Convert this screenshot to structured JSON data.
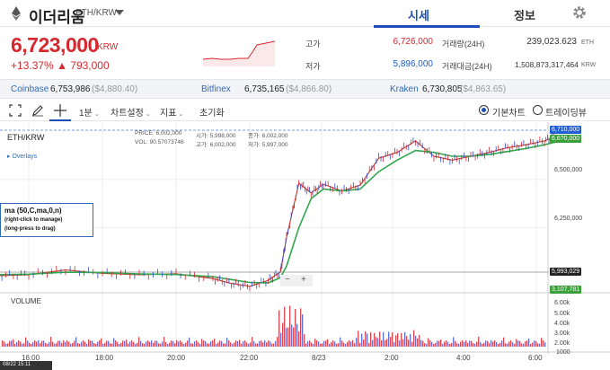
{
  "header": {
    "coin_name": "이더리움",
    "pair": "ETH/KRW",
    "tabs": [
      {
        "label": "시세"
      },
      {
        "label": "정보"
      }
    ]
  },
  "price": {
    "current": "6,723,000",
    "unit": "KRW",
    "change_pct": "+13.37%",
    "change_amt": "▲ 793,000",
    "high_label": "고가",
    "high_value": "6,726,000",
    "low_label": "저가",
    "low_value": "5,896,000",
    "volume_label": "거래량(24H)",
    "volume_value": "239,023.623",
    "volume_unit": "ETH",
    "amount_label": "거래대금(24H)",
    "amount_value": "1,508,873,317,464",
    "amount_unit": "KRW"
  },
  "exchanges": [
    {
      "name": "Coinbase",
      "value": "6,753,986",
      "usd": "($4,880.40)"
    },
    {
      "name": "Bitfinex",
      "value": "6,735,165",
      "usd": "($4,866.80)"
    },
    {
      "name": "Kraken",
      "value": "6,730,805",
      "usd": "($4,863.65)"
    }
  ],
  "toolbar": {
    "interval": "1분",
    "chart_settings": "차트설정",
    "indicators": "지표",
    "reset": "초기화",
    "basic_chart": "기본차트",
    "tradingview": "트레이딩뷰"
  },
  "chart": {
    "symbol": "ETH/KRW",
    "price_label": "PRICE:",
    "price_value": "6,002,000",
    "vol_label": "VOL:",
    "vol_value": "90.57073746",
    "open_label": "시가:",
    "open_value": "5,998,000",
    "high_label": "고가:",
    "high_value": "6,002,000",
    "close_label": "종가:",
    "close_value": "6,002,000",
    "low_label": "저가:",
    "low_value": "5,997,000",
    "overlays": "Overlays",
    "ma_title": "ma (50,C,ma,0,n)",
    "ma_hint1": "(right-click to manage)",
    "ma_hint2": "(long-press to drag)",
    "volume_label": "VOLUME",
    "current_tag": "6,710,000",
    "ma_tag": "6,6?0,000",
    "crosshair_tag": "5,993,029",
    "volume_tag": "3,107,781",
    "timestamp": "08/22 15:11",
    "zoom_minus": "−",
    "zoom_plus": "+"
  },
  "chart_data": {
    "type": "line",
    "title": "",
    "xlabel": "",
    "ylabel": "",
    "x_ticks": [
      "16:00",
      "18:00",
      "20:00",
      "22:00",
      "8/23",
      "2:00",
      "4:00",
      "6:00"
    ],
    "y_ticks": [
      "6,500,000",
      "6,250,000"
    ],
    "vol_ticks": [
      "6.00k",
      "5.00k",
      "4.00k",
      "3.00k",
      "2.00k",
      "1000"
    ],
    "ylim": [
      5930000,
      6760000
    ],
    "x": [
      "15:10",
      "16:00",
      "17:00",
      "18:00",
      "19:00",
      "20:00",
      "21:00",
      "21:30",
      "22:00",
      "22:30",
      "22:50",
      "23:00",
      "23:20",
      "23:40",
      "0:00",
      "0:30",
      "1:00",
      "1:30",
      "2:00",
      "2:30",
      "3:00",
      "3:30",
      "4:00",
      "4:30",
      "5:00",
      "5:30",
      "6:00",
      "6:20"
    ],
    "series": [
      {
        "values": [
          6000000,
          6005000,
          6030000,
          6012000,
          6005000,
          6010000,
          5985000,
          5960000,
          5945000,
          5975000,
          6020000,
          6200000,
          6480000,
          6430000,
          6475000,
          6440000,
          6470000,
          6610000,
          6640000,
          6700000,
          6620000,
          6600000,
          6620000,
          6640000,
          6665000,
          6680000,
          6700000,
          6723000
        ]
      },
      {
        "values": [
          6005000,
          6008000,
          6018000,
          6016000,
          6009000,
          6006000,
          5995000,
          5980000,
          5965000,
          5962000,
          5990000,
          6050000,
          6250000,
          6400000,
          6450000,
          6440000,
          6450000,
          6540000,
          6600000,
          6650000,
          6640000,
          6620000,
          6620000,
          6630000,
          6645000,
          6660000,
          6680000,
          6695000
        ]
      }
    ]
  }
}
